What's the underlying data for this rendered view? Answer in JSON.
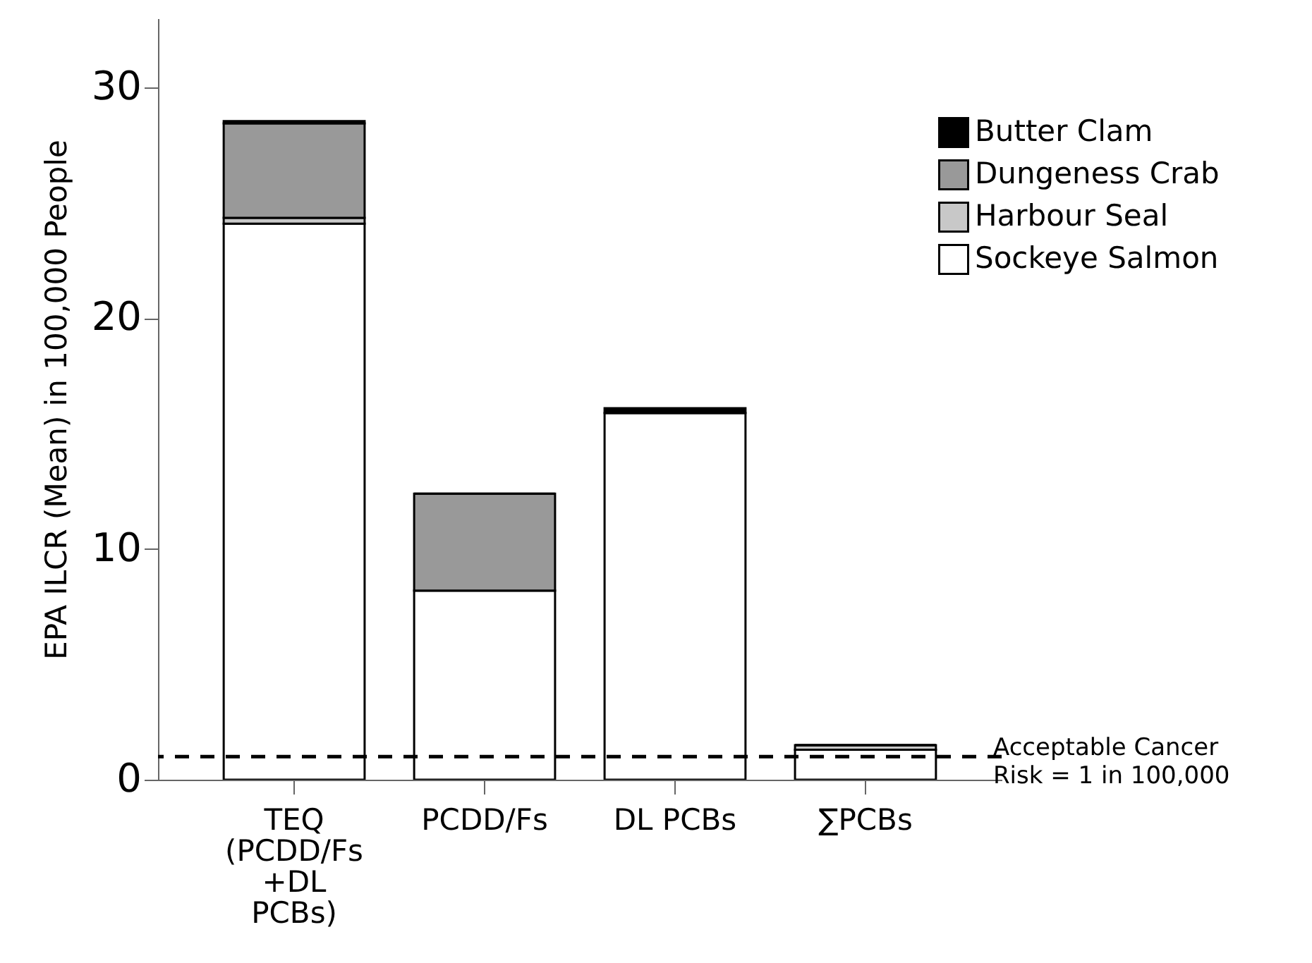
{
  "chart_data": {
    "type": "bar",
    "ylabel": "EPA ILCR (Mean) in 100,000 People",
    "categories": [
      "TEQ\n(PCDD/Fs\n+DL\nPCBs)",
      "PCDD/Fs",
      "DL PCBs",
      "∑PCBs"
    ],
    "stacked": true,
    "ylim": [
      0,
      33
    ],
    "yticks": [
      0,
      10,
      20,
      30
    ],
    "legend": "top right",
    "series": [
      {
        "name": "Sockeye Salmon",
        "color": "#ffffff",
        "values": [
          24.1,
          8.2,
          15.9,
          1.3
        ]
      },
      {
        "name": "Harbour Seal",
        "color": "#c8c8c8",
        "values": [
          0.25,
          0,
          0,
          0.2
        ]
      },
      {
        "name": "Dungeness Crab",
        "color": "#999999",
        "values": [
          4.1,
          4.2,
          0,
          0
        ]
      },
      {
        "name": "Butter Clam",
        "color": "#000000",
        "values": [
          0.1,
          0,
          0.2,
          0
        ]
      }
    ],
    "ref_lines": [
      {
        "axis": "y",
        "value": 1,
        "label": "Acceptable Cancer\nRisk = 1 in 100,000",
        "line_style": "dashed"
      }
    ]
  }
}
